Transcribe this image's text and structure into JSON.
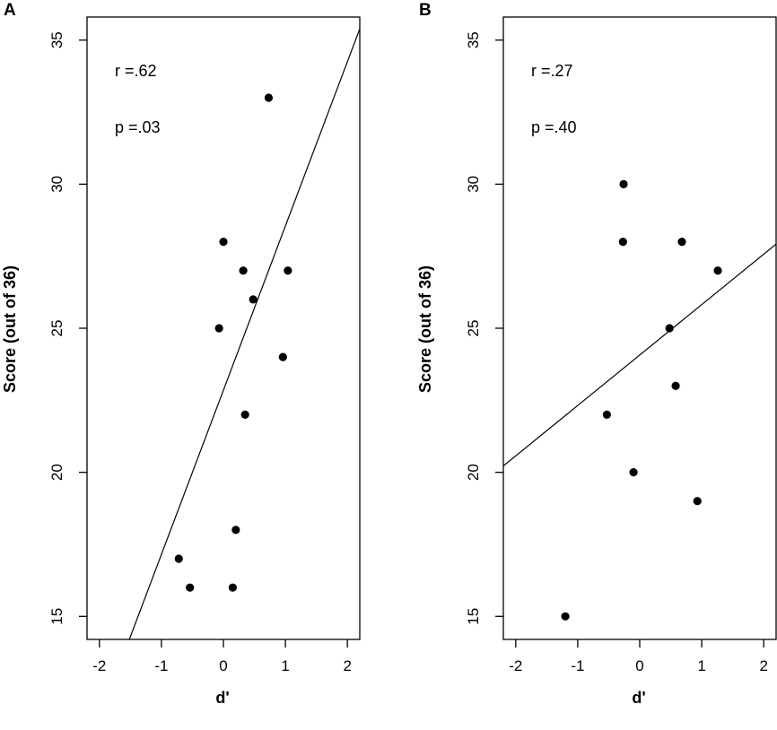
{
  "chart_data": [
    {
      "type": "scatter",
      "panel_label": "A",
      "xlabel": "d'",
      "ylabel": "Score (out of 36)",
      "xlim": [
        -2.2,
        2.2
      ],
      "ylim": [
        14.2,
        35.8
      ],
      "xticks": [
        -2,
        -1,
        0,
        1,
        2
      ],
      "xtick_labels": [
        "-2",
        "-1",
        "0",
        "1",
        "2"
      ],
      "yticks": [
        15,
        20,
        25,
        30,
        35
      ],
      "ytick_labels": [
        "15",
        "20",
        "25",
        "30",
        "35"
      ],
      "points": [
        {
          "x": 0.73,
          "y": 33
        },
        {
          "x": 0.0,
          "y": 28
        },
        {
          "x": 0.32,
          "y": 27
        },
        {
          "x": 1.04,
          "y": 27
        },
        {
          "x": 0.48,
          "y": 26
        },
        {
          "x": -0.07,
          "y": 25
        },
        {
          "x": 0.96,
          "y": 24
        },
        {
          "x": 0.35,
          "y": 22
        },
        {
          "x": 0.2,
          "y": 18
        },
        {
          "x": -0.72,
          "y": 17
        },
        {
          "x": -0.54,
          "y": 16
        },
        {
          "x": 0.15,
          "y": 16
        }
      ],
      "fit_line": {
        "intercept": 22.85,
        "slope": 5.7
      },
      "annotations": [
        "r =.62",
        "p =.03"
      ],
      "grid": false
    },
    {
      "type": "scatter",
      "panel_label": "B",
      "xlabel": "d'",
      "ylabel": "Score (out of 36)",
      "xlim": [
        -2.2,
        2.2
      ],
      "ylim": [
        14.2,
        35.8
      ],
      "xticks": [
        -2,
        -1,
        0,
        1,
        2
      ],
      "xtick_labels": [
        "-2",
        "-1",
        "0",
        "1",
        "2"
      ],
      "yticks": [
        15,
        20,
        25,
        30,
        35
      ],
      "ytick_labels": [
        "15",
        "20",
        "25",
        "30",
        "35"
      ],
      "points": [
        {
          "x": -0.26,
          "y": 30
        },
        {
          "x": -0.27,
          "y": 28
        },
        {
          "x": 0.68,
          "y": 28
        },
        {
          "x": 1.26,
          "y": 27
        },
        {
          "x": 0.48,
          "y": 25
        },
        {
          "x": 0.58,
          "y": 23
        },
        {
          "x": -0.53,
          "y": 22
        },
        {
          "x": -0.1,
          "y": 20
        },
        {
          "x": 0.93,
          "y": 19
        },
        {
          "x": -1.2,
          "y": 15
        }
      ],
      "fit_line": {
        "intercept": 24.07,
        "slope": 1.75
      },
      "annotations": [
        "r =.27",
        "p =.40"
      ],
      "grid": false
    }
  ]
}
